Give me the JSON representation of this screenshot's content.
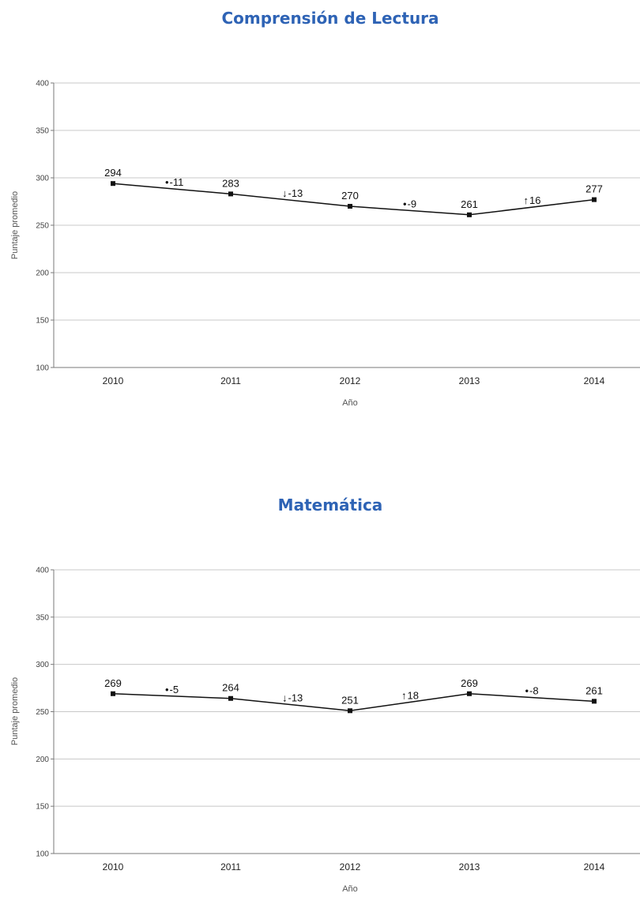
{
  "chart_data": [
    {
      "type": "line",
      "title": "Comprensión de Lectura",
      "xlabel": "Año",
      "ylabel": "Puntaje promedio",
      "ylim": [
        100,
        400
      ],
      "yticks": [
        100,
        150,
        200,
        250,
        300,
        350,
        400
      ],
      "categories": [
        "2010",
        "2011",
        "2012",
        "2013",
        "2014"
      ],
      "values": [
        294,
        283,
        270,
        261,
        277
      ],
      "data_labels": [
        "294",
        "283",
        "270",
        "261",
        "277"
      ],
      "changes": [
        {
          "symbol": "•",
          "text": "-11"
        },
        {
          "symbol": "↓",
          "text": "-13"
        },
        {
          "symbol": "•",
          "text": "-9"
        },
        {
          "symbol": "↑",
          "text": "16"
        }
      ],
      "grid": true
    },
    {
      "type": "line",
      "title": "Matemática",
      "xlabel": "Año",
      "ylabel": "Puntaje promedio",
      "ylim": [
        100,
        400
      ],
      "yticks": [
        100,
        150,
        200,
        250,
        300,
        350,
        400
      ],
      "categories": [
        "2010",
        "2011",
        "2012",
        "2013",
        "2014"
      ],
      "values": [
        269,
        264,
        251,
        269,
        261
      ],
      "data_labels": [
        "269",
        "264",
        "251",
        "269",
        "261"
      ],
      "changes": [
        {
          "symbol": "•",
          "text": "-5"
        },
        {
          "symbol": "↓",
          "text": "-13"
        },
        {
          "symbol": "↑",
          "text": "18"
        },
        {
          "symbol": "•",
          "text": "-8"
        }
      ],
      "grid": true
    }
  ]
}
